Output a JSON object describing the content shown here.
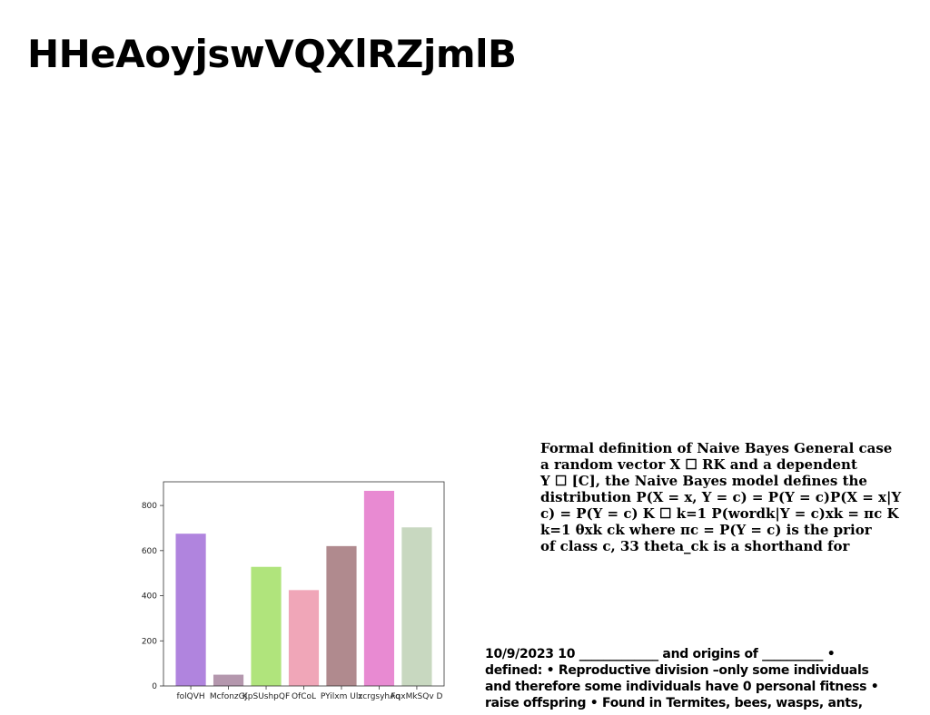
{
  "title": "HHeAoyjswVQXlRZjmlB",
  "naive_bayes_lines": [
    "Formal definition of Naive Bayes General case",
    "a random vector X ☐ RK and a dependent",
    "Y ☐ [C], the Naive Bayes model defines the",
    "distribution P(X = x, Y = c) = P(Y = c)P(X = x|Y",
    "c) = P(Y = c) K ☐ k=1 P(wordk|Y = c)xk = πc K",
    "k=1 θxk ck where πc = P(Y = c) is the prior",
    "of class c, 33 theta_ck is a shorthand for"
  ],
  "notes_lines": [
    "10/9/2023 10 _____________ and origins of __________ •",
    "defined: • Reproductive division –only some individuals",
    "and therefore some individuals have 0 personal fitness •",
    "raise offspring • Found in Termites, bees, wasps, ants,"
  ],
  "chart_data": {
    "type": "bar",
    "categories": [
      "folQVH",
      "McfonzGJ",
      "KpSUshpQF",
      "OfCoL",
      "PYilxm Ulz",
      "xcrgsyhAq",
      "FqxMkSQv D"
    ],
    "values": [
      675,
      50,
      528,
      425,
      620,
      865,
      703
    ],
    "colors": [
      "#b084de",
      "#b497ad",
      "#b0e47c",
      "#f0a6b8",
      "#b08a8e",
      "#e88ad2",
      "#c8d8c0"
    ],
    "yticks": [
      0,
      200,
      400,
      600,
      800
    ],
    "ylim": [
      0,
      905
    ],
    "title": "",
    "xlabel": "",
    "ylabel": "",
    "grid": false
  }
}
